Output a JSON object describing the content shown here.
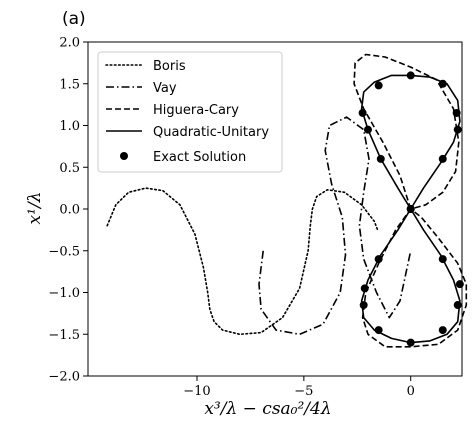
{
  "chart_data": {
    "type": "line",
    "panel_label": "(a)",
    "xlabel": "x³/λ − csa₀²/4λ",
    "ylabel": "x¹/λ",
    "xlim": [
      -15.1,
      2.4
    ],
    "ylim": [
      -2.0,
      2.0
    ],
    "xticks": [
      -10,
      -5,
      0
    ],
    "xtick_labels": [
      "−10",
      "−5",
      "0"
    ],
    "yticks": [
      -2.0,
      -1.5,
      -1.0,
      -0.5,
      0.0,
      0.5,
      1.0,
      1.5,
      2.0
    ],
    "ytick_labels": [
      "−2.0",
      "−1.5",
      "−1.0",
      "−0.5",
      "0.0",
      "0.5",
      "1.0",
      "1.5",
      "2.0"
    ],
    "grid": false,
    "legend_position": "top-left",
    "series": [
      {
        "name": "Boris",
        "style": "dotted",
        "color": "#000000",
        "x": [
          -14.2,
          -13.8,
          -13.2,
          -12.4,
          -11.6,
          -10.8,
          -10.1,
          -9.7,
          -9.5,
          -9.4,
          -9.2,
          -8.8,
          -8.0,
          -7.0,
          -6.0,
          -5.2,
          -4.8,
          -4.7,
          -4.6,
          -4.4,
          -3.9,
          -3.1,
          -2.3,
          -1.7,
          -1.55
        ],
        "y": [
          -0.2,
          0.05,
          0.2,
          0.25,
          0.22,
          0.05,
          -0.3,
          -0.7,
          -1.0,
          -1.2,
          -1.35,
          -1.45,
          -1.5,
          -1.48,
          -1.3,
          -0.95,
          -0.5,
          -0.2,
          0.0,
          0.15,
          0.23,
          0.2,
          0.05,
          -0.15,
          -0.25
        ]
      },
      {
        "name": "Vay",
        "style": "dashdot",
        "color": "#000000",
        "x": [
          -6.9,
          -7.1,
          -7.0,
          -6.3,
          -5.2,
          -4.1,
          -3.3,
          -3.05,
          -3.2,
          -3.7,
          -4.0,
          -3.8,
          -3.0,
          -2.2,
          -1.95,
          -2.2,
          -2.4,
          -2.2,
          -1.6,
          -1.0,
          -0.5,
          0.0
        ],
        "y": [
          -0.5,
          -0.9,
          -1.2,
          -1.45,
          -1.5,
          -1.38,
          -1.0,
          -0.55,
          -0.1,
          0.3,
          0.7,
          1.0,
          1.1,
          0.95,
          0.6,
          0.2,
          -0.2,
          -0.6,
          -1.0,
          -1.3,
          -1.1,
          -0.5
        ]
      },
      {
        "name": "Higuera-Cary",
        "style": "dashed",
        "color": "#000000",
        "x": [
          0.0,
          -0.5,
          -1.3,
          -2.2,
          -2.65,
          -2.6,
          -2.1,
          -1.2,
          0.0,
          1.2,
          2.0,
          2.25,
          2.1,
          1.5,
          0.7,
          0.0,
          -0.7,
          -1.5,
          -2.1,
          -2.25,
          -2.0,
          -1.2,
          0.0,
          1.3,
          2.2,
          2.6,
          2.6,
          2.2,
          1.3,
          0.5,
          0.0
        ],
        "y": [
          0.0,
          0.4,
          0.8,
          1.2,
          1.5,
          1.75,
          1.85,
          1.82,
          1.7,
          1.55,
          1.2,
          0.8,
          0.45,
          0.2,
          0.05,
          0.0,
          -0.25,
          -0.65,
          -1.0,
          -1.3,
          -1.5,
          -1.65,
          -1.65,
          -1.62,
          -1.45,
          -1.15,
          -0.9,
          -0.65,
          -0.35,
          -0.1,
          0.0
        ]
      },
      {
        "name": "Quadratic-Unitary",
        "style": "solid",
        "color": "#000000",
        "x": [
          0.0,
          -0.6,
          -1.4,
          -2.0,
          -2.3,
          -2.2,
          -1.7,
          -0.9,
          0.0,
          0.9,
          1.7,
          2.2,
          2.3,
          2.0,
          1.4,
          0.6,
          0.0,
          -0.6,
          -1.4,
          -2.0,
          -2.3,
          -2.2,
          -1.7,
          -0.9,
          0.0,
          0.9,
          1.7,
          2.2,
          2.3,
          2.0,
          1.4,
          0.6,
          0.0
        ],
        "y": [
          0.0,
          0.25,
          0.6,
          0.95,
          1.2,
          1.4,
          1.52,
          1.6,
          1.6,
          1.58,
          1.5,
          1.3,
          1.05,
          0.8,
          0.55,
          0.25,
          0.0,
          -0.25,
          -0.55,
          -0.85,
          -1.1,
          -1.3,
          -1.45,
          -1.55,
          -1.6,
          -1.58,
          -1.5,
          -1.35,
          -1.1,
          -0.85,
          -0.55,
          -0.25,
          0.0
        ]
      },
      {
        "name": "Exact Solution",
        "style": "markers",
        "color": "#000000",
        "x": [
          0.0,
          -1.4,
          -2.0,
          -2.25,
          -1.5,
          0.0,
          1.5,
          2.15,
          2.2,
          1.5,
          0.0,
          -1.5,
          -2.15,
          -2.2,
          -1.5,
          0.0,
          1.5,
          2.2,
          2.3,
          1.5
        ],
        "y": [
          0.0,
          0.6,
          0.95,
          1.15,
          1.48,
          1.6,
          1.5,
          1.15,
          0.95,
          0.6,
          0.0,
          -0.6,
          -0.95,
          -1.15,
          -1.45,
          -1.6,
          -1.45,
          -1.15,
          -0.9,
          -0.6
        ]
      }
    ]
  }
}
